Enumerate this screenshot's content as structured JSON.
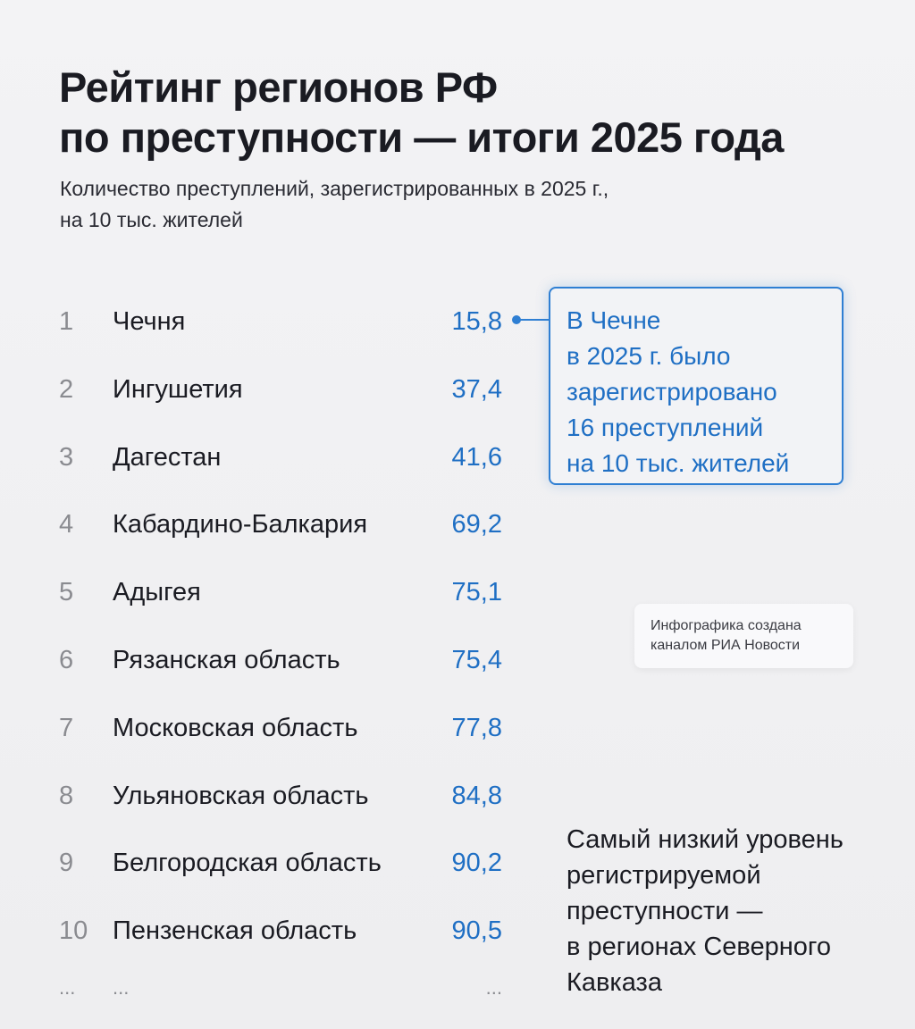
{
  "title": {
    "line1": "Рейтинг регионов РФ",
    "line2": "по преступности — итоги 2025 года"
  },
  "subtitle": {
    "line1": "Количество преступлений, зарегистрированных в 2025 г.,",
    "line2": "на 10 тыс. жителей"
  },
  "chart_data": {
    "type": "table",
    "title": "Рейтинг регионов РФ по преступности — итоги 2025 года",
    "unit": "преступлений на 10 тыс. жителей",
    "rows": [
      {
        "rank": "1",
        "region": "Чечня",
        "value": "15,8"
      },
      {
        "rank": "2",
        "region": "Ингушетия",
        "value": "37,4"
      },
      {
        "rank": "3",
        "region": "Дагестан",
        "value": "41,6"
      },
      {
        "rank": "4",
        "region": "Кабардино-Балкария",
        "value": "69,2"
      },
      {
        "rank": "5",
        "region": "Адыгея",
        "value": "75,1"
      },
      {
        "rank": "6",
        "region": "Рязанская область",
        "value": "75,4"
      },
      {
        "rank": "7",
        "region": "Московская область",
        "value": "77,8"
      },
      {
        "rank": "8",
        "region": "Ульяновская область",
        "value": "84,8"
      },
      {
        "rank": "9",
        "region": "Белгородская область",
        "value": "90,2"
      },
      {
        "rank": "10",
        "region": "Пензенская область",
        "value": "90,5"
      }
    ],
    "ellipsis": {
      "rank": "...",
      "region": "...",
      "value": "..."
    }
  },
  "callout": {
    "lines": [
      "В Чечне",
      "в 2025 г. было",
      "зарегистрировано",
      "16 преступлений",
      "на 10 тыс. жителей"
    ]
  },
  "credit": {
    "line1": "Инфографика создана",
    "line2": "каналом РИА Новости"
  },
  "note": {
    "lines": [
      "Самый низкий уровень",
      "регистрируемой",
      "преступности —",
      "в регионах Северного",
      "Кавказа"
    ]
  },
  "colors": {
    "accent": "#1f6fc4",
    "text": "#1a1b22",
    "rank": "#8a8b90"
  }
}
